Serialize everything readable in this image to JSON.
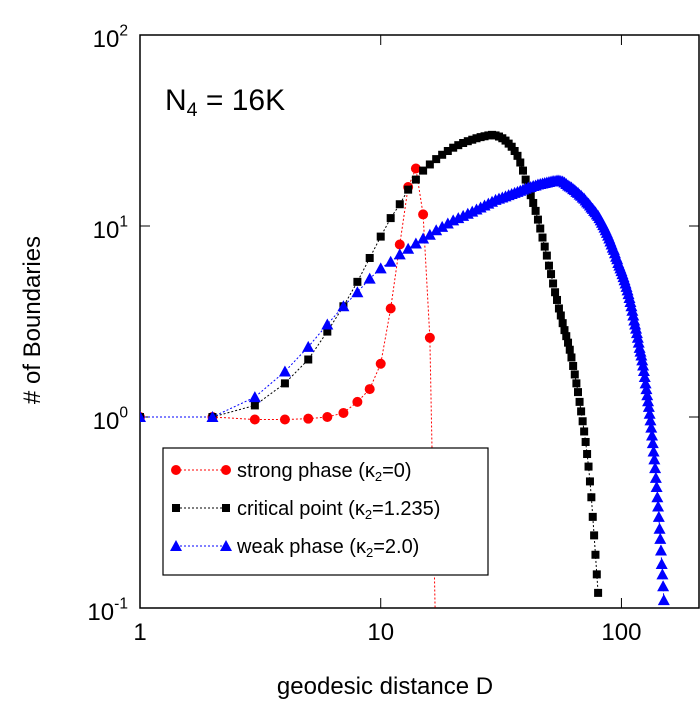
{
  "chart_data": {
    "type": "scatter-line",
    "annotation": "N_4 = 16K",
    "x_label": "geodesic distance D",
    "y_label": "# of Boundaries",
    "x_log": true,
    "y_log": true,
    "xlim": [
      1,
      210
    ],
    "ylim": [
      0.1,
      100
    ],
    "xticks": [
      1,
      10,
      100
    ],
    "yticks": [
      {
        "value": 0.1,
        "label": "10^-1"
      },
      {
        "value": 1,
        "label": "10^0"
      },
      {
        "value": 10,
        "label": "10^1"
      },
      {
        "value": 100,
        "label": "10^2"
      }
    ],
    "legend": "lower left",
    "series": [
      {
        "name": "strong phase (κ_2=0)",
        "color": "#ff0000",
        "marker": "circle",
        "x": [
          1,
          2,
          3,
          4,
          5,
          6,
          7,
          8,
          9,
          10,
          11,
          12,
          13,
          14,
          15,
          16,
          17
        ],
        "values": [
          1,
          1,
          0.97,
          0.97,
          0.98,
          1.0,
          1.05,
          1.2,
          1.4,
          1.9,
          3.7,
          8,
          16,
          20,
          11.5,
          2.6,
          0.05
        ]
      },
      {
        "name": "critical point (κ_2=1.235)",
        "color": "#000000",
        "marker": "square",
        "x": [
          1,
          2,
          3,
          4,
          5,
          6,
          7,
          8,
          9,
          10,
          11,
          12,
          13,
          14,
          15,
          16,
          17,
          18,
          19,
          20,
          21,
          22,
          23,
          24,
          25,
          26,
          27,
          28,
          29,
          30,
          31,
          32,
          33,
          34,
          35,
          36,
          37,
          38,
          39,
          40,
          41,
          42,
          43,
          44,
          45,
          46,
          47,
          48,
          49,
          50,
          51,
          52,
          53,
          54,
          55,
          56,
          57,
          58,
          59,
          60,
          61,
          62,
          63,
          64,
          65,
          66,
          67,
          68,
          69,
          70,
          71,
          72,
          73,
          74,
          75,
          76,
          77,
          78,
          79,
          80
        ],
        "values": [
          1,
          1,
          1.15,
          1.5,
          2.0,
          2.8,
          3.8,
          5.1,
          6.8,
          8.8,
          11,
          13,
          15.5,
          17.5,
          19.5,
          21,
          22.4,
          23.6,
          24.7,
          25.7,
          26.5,
          27.2,
          27.8,
          28.3,
          28.8,
          29.2,
          29.5,
          29.8,
          30,
          29.8,
          29.4,
          28.8,
          28,
          27,
          26,
          24.7,
          23.3,
          21.5,
          19.5,
          17.5,
          16,
          14.5,
          13.2,
          12,
          10.8,
          9.7,
          8.7,
          7.8,
          7,
          6.2,
          5.6,
          5,
          4.5,
          4.1,
          3.7,
          3.4,
          3.1,
          2.85,
          2.65,
          2.45,
          2.25,
          2.05,
          1.85,
          1.67,
          1.5,
          1.35,
          1.2,
          1.07,
          0.95,
          0.84,
          0.74,
          0.64,
          0.55,
          0.46,
          0.38,
          0.3,
          0.24,
          0.19,
          0.15,
          0.12
        ]
      },
      {
        "name": "weak phase (κ_2=2.0)",
        "color": "#0000ff",
        "marker": "triangle",
        "x": [
          1,
          2,
          3,
          4,
          5,
          6,
          7,
          8,
          9,
          10,
          11,
          12,
          13,
          14,
          15,
          16,
          17,
          18,
          19,
          20,
          21,
          22,
          23,
          24,
          25,
          26,
          27,
          28,
          29,
          30,
          31,
          32,
          33,
          34,
          35,
          36,
          37,
          38,
          39,
          40,
          41,
          42,
          43,
          44,
          45,
          46,
          47,
          48,
          49,
          50,
          51,
          52,
          53,
          54,
          55,
          56,
          57,
          58,
          59,
          60,
          61,
          62,
          63,
          64,
          65,
          66,
          67,
          68,
          69,
          70,
          71,
          72,
          73,
          74,
          75,
          76,
          77,
          78,
          79,
          80,
          81,
          82,
          83,
          84,
          85,
          86,
          87,
          88,
          89,
          90,
          91,
          92,
          93,
          94,
          95,
          96,
          97,
          98,
          99,
          100,
          101,
          102,
          103,
          104,
          105,
          106,
          107,
          108,
          109,
          110,
          111,
          112,
          113,
          114,
          115,
          116,
          117,
          118,
          119,
          120,
          121,
          122,
          123,
          124,
          125,
          126,
          127,
          128,
          129,
          130,
          131,
          132,
          133,
          134,
          135,
          136,
          137,
          138,
          139,
          140,
          141,
          142,
          143,
          144,
          145,
          146,
          147,
          148,
          149,
          150
        ],
        "values": [
          1,
          1,
          1.27,
          1.73,
          2.33,
          3.05,
          3.8,
          4.5,
          5.3,
          6.0,
          6.5,
          7.1,
          7.6,
          8.1,
          8.6,
          9.0,
          9.5,
          9.9,
          10.3,
          10.7,
          11.0,
          11.3,
          11.6,
          11.9,
          12.2,
          12.5,
          12.8,
          13.1,
          13.4,
          13.7,
          13.9,
          14.1,
          14.3,
          14.5,
          14.7,
          14.9,
          15.1,
          15.3,
          15.5,
          15.7,
          15.9,
          16.0,
          16.2,
          16.3,
          16.5,
          16.6,
          16.7,
          16.8,
          16.9,
          17.0,
          17.1,
          17.2,
          17.2,
          17.3,
          17.3,
          17.2,
          17.1,
          16.9,
          16.6,
          16.3,
          16.1,
          15.9,
          15.6,
          15.4,
          15.1,
          14.9,
          14.6,
          14.4,
          14.1,
          13.9,
          13.6,
          13.3,
          13.1,
          12.8,
          12.5,
          12.3,
          12.0,
          11.8,
          11.5,
          11.3,
          11.0,
          10.7,
          10.4,
          10.1,
          9.8,
          9.5,
          9.2,
          8.9,
          8.6,
          8.3,
          8.0,
          7.7,
          7.5,
          7.2,
          6.9,
          6.7,
          6.4,
          6.2,
          6.0,
          5.8,
          5.6,
          5.4,
          5.2,
          5.0,
          4.8,
          4.6,
          4.4,
          4.2,
          4.0,
          3.8,
          3.6,
          3.4,
          3.2,
          3.05,
          2.9,
          2.75,
          2.6,
          2.45,
          2.3,
          2.2,
          2.1,
          1.98,
          1.86,
          1.74,
          1.62,
          1.5,
          1.4,
          1.3,
          1.21,
          1.13,
          1.04,
          0.96,
          0.88,
          0.8,
          0.73,
          0.66,
          0.6,
          0.54,
          0.48,
          0.43,
          0.38,
          0.34,
          0.3,
          0.26,
          0.23,
          0.2,
          0.17,
          0.15,
          0.13,
          0.11
        ]
      }
    ]
  }
}
